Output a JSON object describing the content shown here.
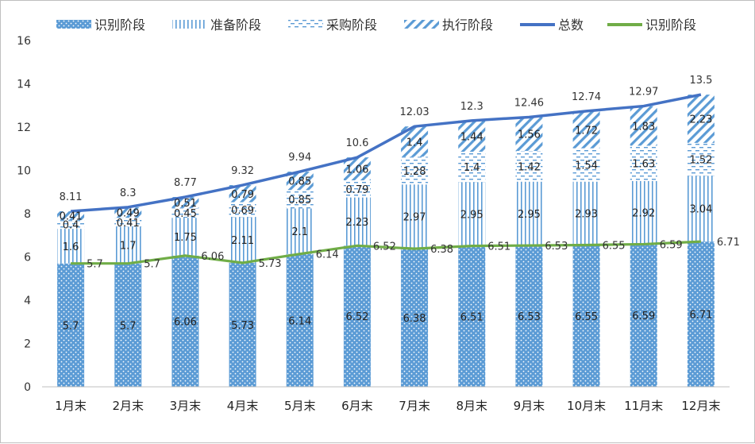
{
  "chart_data": {
    "type": "bar",
    "stacked": true,
    "categories": [
      "1月末",
      "2月末",
      "3月末",
      "4月末",
      "5月末",
      "6月末",
      "7月末",
      "8月末",
      "9月末",
      "10月末",
      "11月末",
      "12月末"
    ],
    "ylim": [
      0,
      16
    ],
    "yticks": [
      0,
      2,
      4,
      6,
      8,
      10,
      12,
      14,
      16
    ],
    "grid": false,
    "legend_position": "top",
    "bar_series": [
      {
        "name": "识别阶段",
        "pattern": "dots",
        "color": "#5b9bd5",
        "values": [
          5.7,
          5.7,
          6.06,
          5.73,
          6.14,
          6.52,
          6.38,
          6.51,
          6.53,
          6.55,
          6.59,
          6.71
        ]
      },
      {
        "name": "准备阶段",
        "pattern": "vertical",
        "color": "#5b9bd5",
        "values": [
          1.6,
          1.7,
          1.75,
          2.11,
          2.1,
          2.23,
          2.97,
          2.95,
          2.95,
          2.93,
          2.92,
          3.04
        ]
      },
      {
        "name": "采购阶段",
        "pattern": "dashes",
        "color": "#5b9bd5",
        "values": [
          0.4,
          0.41,
          0.45,
          0.69,
          0.85,
          0.79,
          1.28,
          1.4,
          1.42,
          1.54,
          1.63,
          1.52
        ]
      },
      {
        "name": "执行阶段",
        "pattern": "diagonal",
        "color": "#5b9bd5",
        "values": [
          0.41,
          0.49,
          0.51,
          0.79,
          0.85,
          1.06,
          1.4,
          1.44,
          1.56,
          1.72,
          1.83,
          2.23
        ]
      }
    ],
    "line_series": [
      {
        "name": "总数",
        "color": "#4472c4",
        "values": [
          8.11,
          8.3,
          8.77,
          9.32,
          9.94,
          10.6,
          12.03,
          12.3,
          12.46,
          12.74,
          12.97,
          13.5
        ]
      },
      {
        "name": "识别阶段",
        "color": "#70ad47",
        "values": [
          5.7,
          5.7,
          6.06,
          5.73,
          6.14,
          6.52,
          6.38,
          6.51,
          6.53,
          6.55,
          6.59,
          6.71
        ]
      }
    ]
  }
}
